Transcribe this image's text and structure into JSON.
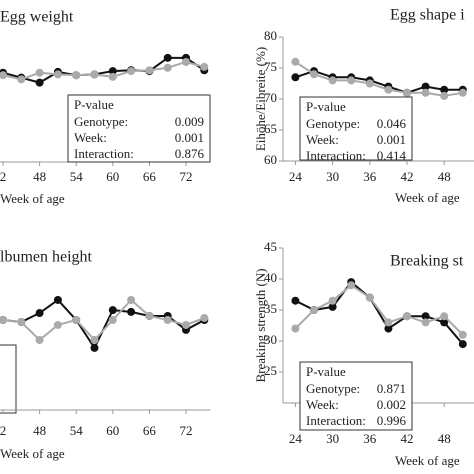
{
  "chart_data": [
    {
      "type": "line",
      "title": "Egg weight",
      "xlabel": "Week of age",
      "x": [
        42,
        45,
        48,
        51,
        54,
        57,
        60,
        63,
        66,
        69,
        72,
        75
      ],
      "xlim": [
        40,
        76
      ],
      "xticks": [
        {
          "value": 42,
          "label": "2"
        },
        48,
        54,
        60,
        66,
        72
      ],
      "ylim": [
        55,
        70
      ],
      "series": [
        {
          "color": "#111111",
          "values": [
            65.8,
            65.2,
            64.6,
            65.9,
            65.5,
            65.6,
            66.0,
            66.1,
            66.0,
            67.6,
            67.6,
            66.1
          ]
        },
        {
          "color": "#aaaaaa",
          "values": [
            65.5,
            65.0,
            65.8,
            65.6,
            65.5,
            65.6,
            65.3,
            66.0,
            66.1,
            66.4,
            67.1,
            66.5
          ]
        }
      ],
      "pvalue": {
        "heading": "P-value",
        "rows": [
          {
            "label": "Genotype:",
            "value": "0.009"
          },
          {
            "label": "Week:",
            "value": "0.001"
          },
          {
            "label": "Interaction:",
            "value": "0.876"
          }
        ]
      }
    },
    {
      "type": "line",
      "title": "Egg shape i",
      "xlabel": "Week of age",
      "ylabel": "Eihöhe/Eibreite (%)",
      "x": [
        24,
        27,
        30,
        33,
        36,
        39,
        42,
        45,
        48,
        51
      ],
      "xlim": [
        22,
        54
      ],
      "xticks": [
        24,
        30,
        36,
        42,
        48
      ],
      "ylim": [
        60,
        80
      ],
      "yticks": [
        60,
        65,
        70,
        75,
        80
      ],
      "series": [
        {
          "color": "#111111",
          "values": [
            73.5,
            74.5,
            73.5,
            73.5,
            73,
            72,
            71,
            72,
            71.5,
            71.5
          ]
        },
        {
          "color": "#aaaaaa",
          "values": [
            76,
            74,
            73,
            73,
            72.5,
            71.5,
            71,
            71,
            70.5,
            71
          ]
        }
      ],
      "pvalue": {
        "heading": "P-value",
        "rows": [
          {
            "label": "Genotype:",
            "value": "0.046"
          },
          {
            "label": "Week:",
            "value": "0.001"
          },
          {
            "label": "Interaction:",
            "value": "0.414"
          }
        ]
      }
    },
    {
      "type": "line",
      "title": "lbumen height",
      "xlabel": "Week of age",
      "x": [
        42,
        45,
        48,
        51,
        54,
        57,
        60,
        63,
        66,
        69,
        72,
        75
      ],
      "xlim": [
        40,
        76
      ],
      "xticks": [
        {
          "value": 42,
          "label": "2"
        },
        48,
        54,
        60,
        66,
        72
      ],
      "ylim": [
        4,
        10
      ],
      "series": [
        {
          "color": "#111111",
          "values": [
            8.0,
            7.91,
            8.31,
            8.89,
            8.0,
            6.76,
            8.44,
            8.36,
            8.18,
            8.18,
            7.56,
            8.0
          ]
        },
        {
          "color": "#aaaaaa",
          "values": [
            8.0,
            7.91,
            7.11,
            7.78,
            8.0,
            7.11,
            8.0,
            8.89,
            8.18,
            8.0,
            7.78,
            8.09
          ]
        }
      ]
    },
    {
      "type": "line",
      "title": "Breaking st",
      "xlabel": "Week of age",
      "ylabel": "Breaking strength (N)",
      "x": [
        24,
        27,
        30,
        33,
        36,
        39,
        42,
        45,
        48,
        51
      ],
      "xlim": [
        22,
        54
      ],
      "xticks": [
        24,
        30,
        36,
        42,
        48
      ],
      "ylim": [
        20,
        45
      ],
      "yticks": [
        25,
        30,
        35,
        40,
        45
      ],
      "series": [
        {
          "color": "#111111",
          "values": [
            36.5,
            35,
            35.5,
            39.5,
            37,
            32,
            34,
            34,
            33,
            29.5
          ]
        },
        {
          "color": "#aaaaaa",
          "values": [
            32,
            35,
            36.5,
            39,
            37,
            33,
            34,
            33,
            34,
            31
          ]
        }
      ],
      "pvalue": {
        "heading": "P-value",
        "rows": [
          {
            "label": "Genotype:",
            "value": "0.871"
          },
          {
            "label": "Week:",
            "value": "0.002"
          },
          {
            "label": "Interaction:",
            "value": "0.996"
          }
        ]
      }
    }
  ]
}
